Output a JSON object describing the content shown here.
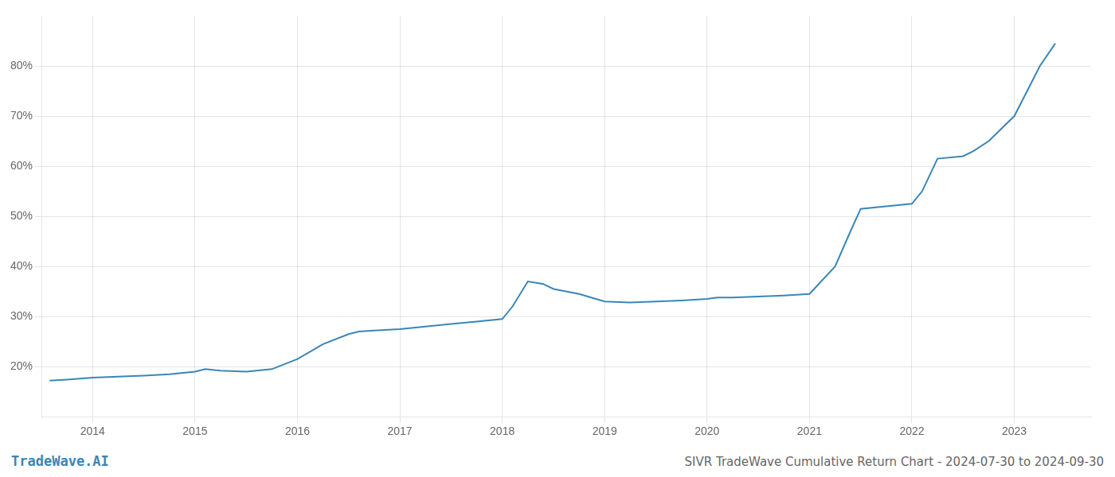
{
  "chart_data": {
    "type": "line",
    "title": "SIVR TradeWave Cumulative Return Chart - 2024-07-30 to 2024-09-30",
    "annotations": [
      "TradeWave.AI"
    ],
    "color": "#3a86b8",
    "x": [
      2013.58,
      2013.75,
      2014.0,
      2014.25,
      2014.5,
      2014.75,
      2015.0,
      2015.1,
      2015.25,
      2015.5,
      2015.75,
      2016.0,
      2016.25,
      2016.5,
      2016.6,
      2016.75,
      2017.0,
      2017.25,
      2017.5,
      2017.75,
      2018.0,
      2018.1,
      2018.25,
      2018.4,
      2018.5,
      2018.75,
      2019.0,
      2019.25,
      2019.5,
      2019.75,
      2020.0,
      2020.1,
      2020.25,
      2020.5,
      2020.75,
      2021.0,
      2021.25,
      2021.4,
      2021.5,
      2021.75,
      2022.0,
      2022.1,
      2022.25,
      2022.5,
      2022.6,
      2022.75,
      2023.0,
      2023.25,
      2023.4
    ],
    "values": [
      17.2,
      17.4,
      17.8,
      18.0,
      18.2,
      18.5,
      19.0,
      19.5,
      19.2,
      19.0,
      19.5,
      21.5,
      24.5,
      26.5,
      27.0,
      27.2,
      27.5,
      28.0,
      28.5,
      29.0,
      29.5,
      32.0,
      37.0,
      36.5,
      35.5,
      34.5,
      33.0,
      32.8,
      33.0,
      33.2,
      33.5,
      33.8,
      33.8,
      34.0,
      34.2,
      34.5,
      40.0,
      47.0,
      51.5,
      52.0,
      52.5,
      55.0,
      61.5,
      62.0,
      63.0,
      65.0,
      70.0,
      80.0,
      84.5
    ],
    "xlim": [
      2013.5,
      2023.75
    ],
    "xticks": [
      2014,
      2015,
      2016,
      2017,
      2018,
      2019,
      2020,
      2021,
      2022,
      2023
    ],
    "ylim": [
      10,
      90
    ],
    "yticks": [
      {
        "value": 20,
        "label": "20%"
      },
      {
        "value": 30,
        "label": "30%"
      },
      {
        "value": 40,
        "label": "40%"
      },
      {
        "value": 50,
        "label": "50%"
      },
      {
        "value": 60,
        "label": "60%"
      },
      {
        "value": 70,
        "label": "70%"
      },
      {
        "value": 80,
        "label": "80%"
      }
    ],
    "grid": true
  }
}
